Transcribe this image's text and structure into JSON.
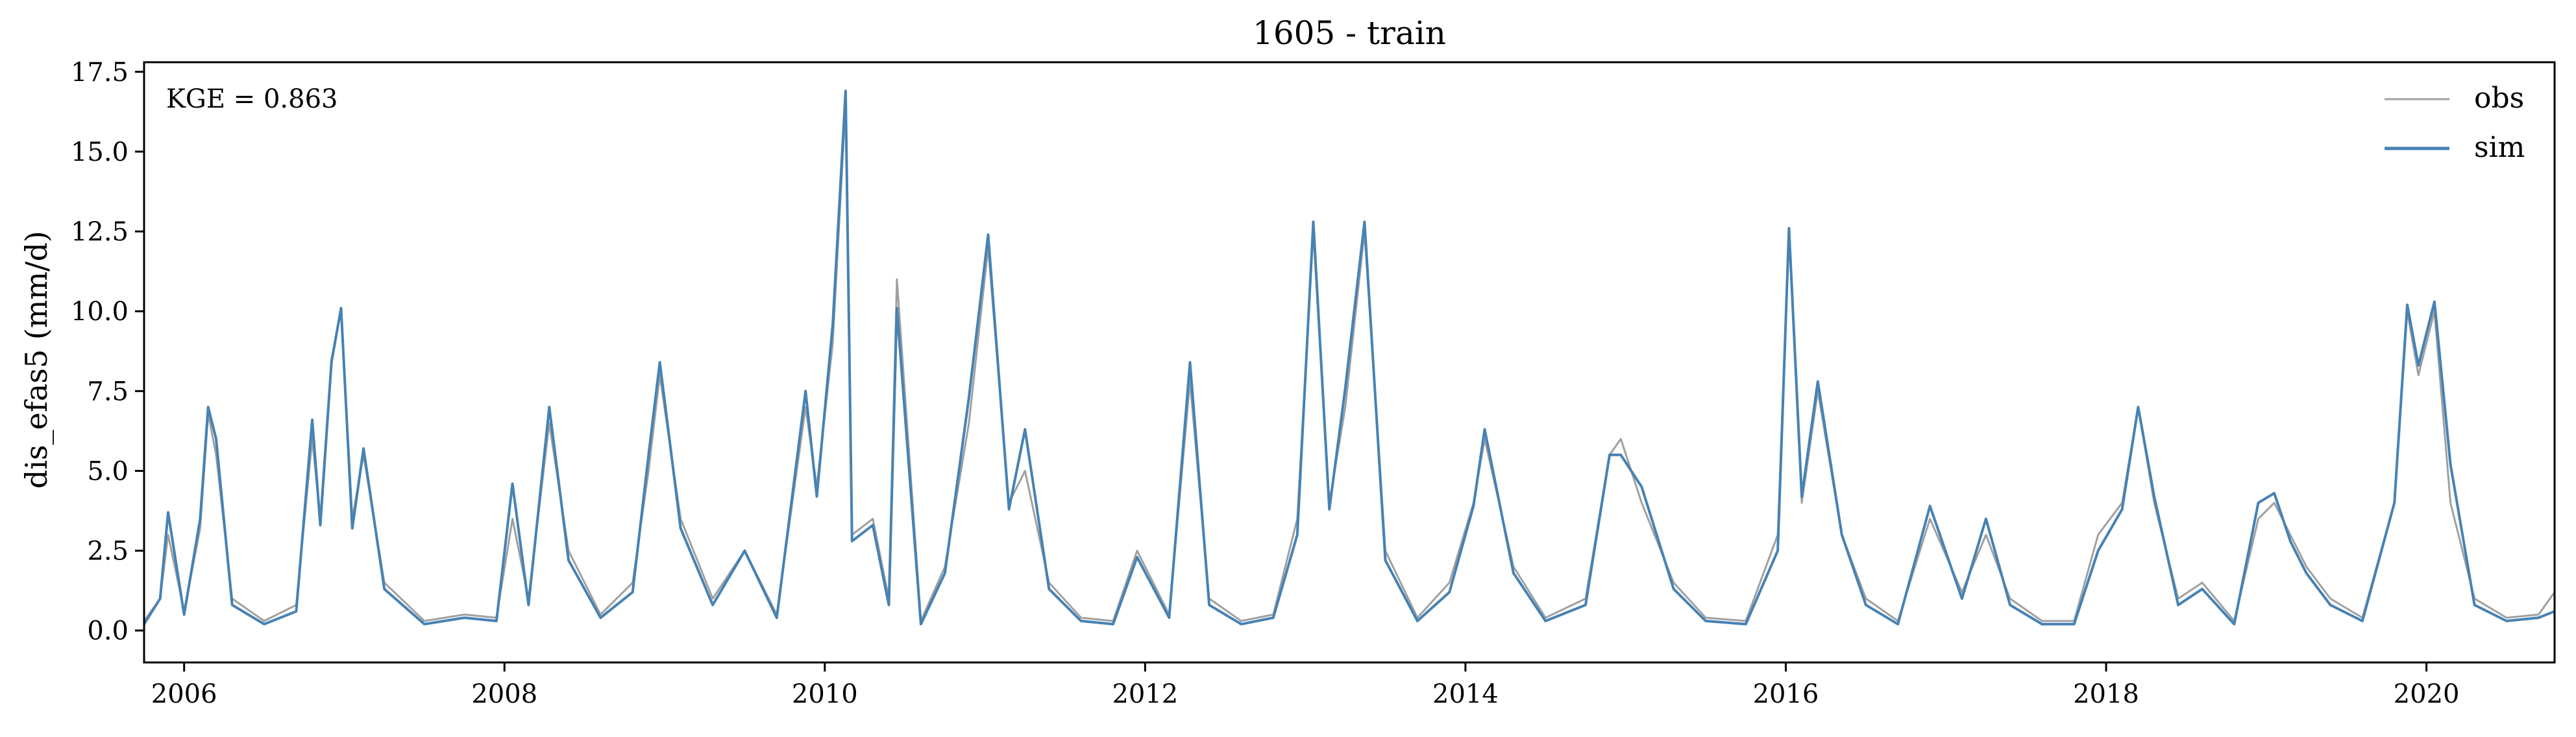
{
  "chart_data": {
    "type": "line",
    "title": "1605 - train",
    "xlabel": "",
    "ylabel": "dis_efas5 (mm/d)",
    "annotation": "KGE = 0.863",
    "xlim": [
      2005.75,
      2020.8
    ],
    "ylim": [
      -1.0,
      17.8
    ],
    "xticks": [
      2006,
      2008,
      2010,
      2012,
      2014,
      2016,
      2018,
      2020
    ],
    "xtick_labels": [
      "2006",
      "2008",
      "2010",
      "2012",
      "2014",
      "2016",
      "2018",
      "2020"
    ],
    "yticks": [
      0.0,
      2.5,
      5.0,
      7.5,
      10.0,
      12.5,
      15.0,
      17.5
    ],
    "ytick_labels": [
      "0.0",
      "2.5",
      "5.0",
      "7.5",
      "10.0",
      "12.5",
      "15.0",
      "17.5"
    ],
    "grid": false,
    "legend": {
      "position": "top-right"
    },
    "series": [
      {
        "name": "obs",
        "color": "#a0a0a0",
        "x": [
          2005.75,
          2005.85,
          2005.9,
          2006.0,
          2006.1,
          2006.15,
          2006.2,
          2006.3,
          2006.5,
          2006.7,
          2006.8,
          2006.85,
          2006.92,
          2006.98,
          2007.05,
          2007.12,
          2007.25,
          2007.5,
          2007.75,
          2007.95,
          2008.05,
          2008.15,
          2008.28,
          2008.4,
          2008.6,
          2008.8,
          2008.9,
          2008.97,
          2009.1,
          2009.3,
          2009.5,
          2009.7,
          2009.88,
          2009.95,
          2010.05,
          2010.13,
          2010.17,
          2010.3,
          2010.4,
          2010.45,
          2010.6,
          2010.75,
          2010.9,
          2011.02,
          2011.15,
          2011.25,
          2011.4,
          2011.6,
          2011.8,
          2011.95,
          2012.15,
          2012.28,
          2012.4,
          2012.6,
          2012.8,
          2012.95,
          2013.05,
          2013.15,
          2013.25,
          2013.37,
          2013.5,
          2013.7,
          2013.9,
          2014.05,
          2014.12,
          2014.3,
          2014.5,
          2014.75,
          2014.9,
          2014.97,
          2015.1,
          2015.3,
          2015.5,
          2015.75,
          2015.95,
          2016.02,
          2016.1,
          2016.2,
          2016.35,
          2016.5,
          2016.7,
          2016.9,
          2017.1,
          2017.25,
          2017.4,
          2017.6,
          2017.8,
          2017.95,
          2018.1,
          2018.2,
          2018.3,
          2018.45,
          2018.6,
          2018.8,
          2018.95,
          2019.05,
          2019.15,
          2019.25,
          2019.4,
          2019.6,
          2019.8,
          2019.88,
          2019.95,
          2020.05,
          2020.15,
          2020.3,
          2020.5,
          2020.7,
          2020.8
        ],
        "y": [
          0.3,
          1.0,
          3.0,
          0.6,
          3.2,
          6.8,
          5.5,
          1.0,
          0.3,
          0.8,
          6.0,
          3.5,
          8.5,
          10.0,
          3.5,
          5.5,
          1.5,
          0.3,
          0.5,
          0.4,
          3.5,
          1.0,
          6.5,
          2.5,
          0.5,
          1.5,
          5.0,
          8.0,
          3.5,
          1.0,
          2.5,
          0.5,
          7.0,
          4.5,
          9.0,
          16.5,
          3.0,
          3.5,
          1.0,
          11.0,
          0.3,
          2.0,
          6.5,
          12.0,
          4.0,
          5.0,
          1.5,
          0.4,
          0.3,
          2.5,
          0.5,
          7.8,
          1.0,
          0.3,
          0.5,
          3.5,
          12.5,
          4.0,
          7.0,
          12.5,
          2.5,
          0.4,
          1.5,
          4.0,
          6.0,
          2.0,
          0.4,
          1.0,
          5.5,
          6.0,
          4.0,
          1.5,
          0.4,
          0.3,
          3.0,
          12.5,
          4.0,
          7.5,
          3.0,
          1.0,
          0.3,
          3.5,
          1.2,
          3.0,
          1.0,
          0.3,
          0.3,
          3.0,
          4.0,
          7.0,
          4.0,
          1.0,
          1.5,
          0.3,
          3.5,
          4.0,
          3.0,
          2.0,
          1.0,
          0.4,
          4.0,
          10.0,
          8.0,
          10.0,
          4.0,
          1.0,
          0.4,
          0.5,
          1.2
        ]
      },
      {
        "name": "sim",
        "color": "#4682b4",
        "x": [
          2005.75,
          2005.85,
          2005.9,
          2006.0,
          2006.1,
          2006.15,
          2006.2,
          2006.3,
          2006.5,
          2006.7,
          2006.8,
          2006.85,
          2006.92,
          2006.98,
          2007.05,
          2007.12,
          2007.25,
          2007.5,
          2007.75,
          2007.95,
          2008.05,
          2008.15,
          2008.28,
          2008.4,
          2008.6,
          2008.8,
          2008.9,
          2008.97,
          2009.1,
          2009.3,
          2009.5,
          2009.7,
          2009.88,
          2009.95,
          2010.05,
          2010.13,
          2010.17,
          2010.3,
          2010.4,
          2010.45,
          2010.6,
          2010.75,
          2010.9,
          2011.02,
          2011.15,
          2011.25,
          2011.4,
          2011.6,
          2011.8,
          2011.95,
          2012.15,
          2012.28,
          2012.4,
          2012.6,
          2012.8,
          2012.95,
          2013.05,
          2013.15,
          2013.25,
          2013.37,
          2013.5,
          2013.7,
          2013.9,
          2014.05,
          2014.12,
          2014.3,
          2014.5,
          2014.75,
          2014.9,
          2014.97,
          2015.1,
          2015.3,
          2015.5,
          2015.75,
          2015.95,
          2016.02,
          2016.1,
          2016.2,
          2016.35,
          2016.5,
          2016.7,
          2016.9,
          2017.1,
          2017.25,
          2017.4,
          2017.6,
          2017.8,
          2017.95,
          2018.1,
          2018.2,
          2018.3,
          2018.45,
          2018.6,
          2018.8,
          2018.95,
          2019.05,
          2019.15,
          2019.25,
          2019.4,
          2019.6,
          2019.8,
          2019.88,
          2019.95,
          2020.05,
          2020.15,
          2020.3,
          2020.5,
          2020.7,
          2020.8
        ],
        "y": [
          0.2,
          1.0,
          3.7,
          0.5,
          3.5,
          7.0,
          6.0,
          0.8,
          0.2,
          0.6,
          6.6,
          3.3,
          8.4,
          10.1,
          3.2,
          5.7,
          1.3,
          0.2,
          0.4,
          0.3,
          4.6,
          0.8,
          7.0,
          2.2,
          0.4,
          1.2,
          5.5,
          8.4,
          3.2,
          0.8,
          2.5,
          0.4,
          7.5,
          4.2,
          9.6,
          16.9,
          2.8,
          3.3,
          0.8,
          10.1,
          0.2,
          1.8,
          7.3,
          12.4,
          3.8,
          6.3,
          1.3,
          0.3,
          0.2,
          2.3,
          0.4,
          8.4,
          0.8,
          0.2,
          0.4,
          3.0,
          12.8,
          3.8,
          7.6,
          12.8,
          2.2,
          0.3,
          1.2,
          3.9,
          6.3,
          1.8,
          0.3,
          0.8,
          5.5,
          5.5,
          4.5,
          1.3,
          0.3,
          0.2,
          2.5,
          12.6,
          4.2,
          7.8,
          3.0,
          0.8,
          0.2,
          3.9,
          1.0,
          3.5,
          0.8,
          0.2,
          0.2,
          2.5,
          3.8,
          7.0,
          4.2,
          0.8,
          1.3,
          0.2,
          4.0,
          4.3,
          2.8,
          1.8,
          0.8,
          0.3,
          4.0,
          10.2,
          8.3,
          10.3,
          5.2,
          0.8,
          0.3,
          0.4,
          0.6
        ]
      }
    ]
  }
}
